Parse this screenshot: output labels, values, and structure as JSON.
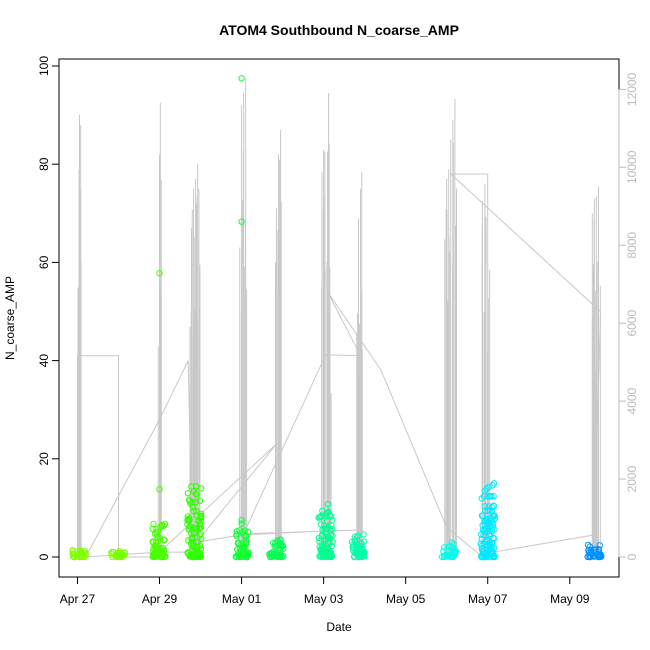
{
  "chart_data": {
    "type": "scatter",
    "title": "ATOM4 Southbound N_coarse_AMP",
    "xlabel": "Date",
    "ylabel": "N_coarse_AMP",
    "ylim": [
      0,
      100
    ],
    "y_ticks": [
      0,
      20,
      40,
      60,
      80,
      100
    ],
    "y2lim": [
      0,
      12500
    ],
    "y2_ticks": [
      0,
      2000,
      4000,
      6000,
      8000,
      10000,
      12000
    ],
    "x_ticks": [
      {
        "label": "Apr 27",
        "day": 27.0
      },
      {
        "label": "Apr 29",
        "day": 29.0
      },
      {
        "label": "May 01",
        "day": 31.0
      },
      {
        "label": "May 03",
        "day": 33.0
      },
      {
        "label": "May 05",
        "day": 35.0
      },
      {
        "label": "May 07",
        "day": 37.0
      },
      {
        "label": "May 09",
        "day": 39.0
      }
    ],
    "xlim": [
      26.55,
      40.2
    ],
    "grid": false,
    "points_color_note": "points colored by time, green to blue",
    "point_groups": [
      {
        "x": 27.05,
        "ymax": 1.5,
        "color": "#80ff00"
      },
      {
        "x": 28.0,
        "ymax": 1.2,
        "color": "#78ff00"
      },
      {
        "x": 29.0,
        "ymax": 6.8,
        "color": "#48ff00",
        "outliers": [
          57.8,
          13.8
        ]
      },
      {
        "x": 29.85,
        "ymax": 14.5,
        "color": "#30ff00",
        "outliers": []
      },
      {
        "x": 31.0,
        "ymax": 5.5,
        "color": "#10ff30",
        "outliers": [
          97.5,
          68.3,
          7.5,
          6.8
        ]
      },
      {
        "x": 31.85,
        "ymax": 4.0,
        "color": "#00ff50"
      },
      {
        "x": 33.05,
        "ymax": 10.8,
        "color": "#00ff90"
      },
      {
        "x": 33.85,
        "ymax": 5.2,
        "color": "#00ffa8"
      },
      {
        "x": 36.05,
        "ymax": 3.2,
        "color": "#00ffe8"
      },
      {
        "x": 37.0,
        "ymax": 15.2,
        "color": "#00eaff"
      },
      {
        "x": 39.6,
        "ymax": 2.5,
        "color": "#0090ff"
      }
    ],
    "secondary_series_color": "#c8c8c8"
  }
}
